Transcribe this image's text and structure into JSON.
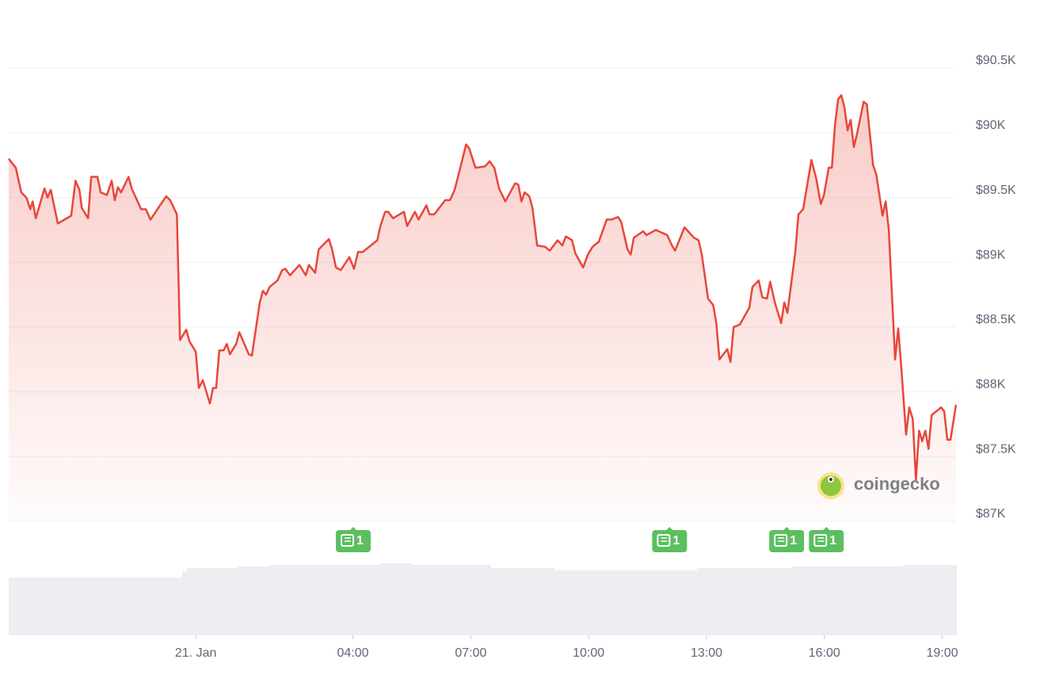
{
  "chart_data": {
    "type": "area",
    "watermark": "coingecko",
    "x": [
      -4.76,
      -4.58,
      -4.44,
      -4.31,
      -4.21,
      -4.15,
      -4.07,
      -3.85,
      -3.77,
      -3.69,
      -3.51,
      -3.17,
      -3.06,
      -2.96,
      -2.9,
      -2.74,
      -2.66,
      -2.5,
      -2.42,
      -2.26,
      -2.14,
      -2.06,
      -1.98,
      -1.9,
      -1.71,
      -1.63,
      -1.39,
      -1.27,
      -1.15,
      -0.91,
      -0.75,
      -0.65,
      -0.48,
      -0.4,
      -0.24,
      -0.16,
      0,
      0.08,
      0.18,
      0.36,
      0.44,
      0.52,
      0.6,
      0.71,
      0.79,
      0.87,
      1.03,
      1.11,
      1.35,
      1.43,
      1.63,
      1.71,
      1.79,
      1.88,
      2.08,
      2.2,
      2.28,
      2.4,
      2.64,
      2.8,
      2.88,
      3.04,
      3.13,
      3.39,
      3.47,
      3.57,
      3.69,
      3.91,
      4.03,
      4.13,
      4.25,
      4.62,
      4.7,
      4.82,
      4.9,
      5.02,
      5.3,
      5.38,
      5.58,
      5.67,
      5.87,
      5.95,
      6.07,
      6.35,
      6.47,
      6.59,
      6.75,
      6.88,
      6.96,
      7.12,
      7.36,
      7.48,
      7.6,
      7.72,
      7.88,
      8.13,
      8.21,
      8.29,
      8.37,
      8.49,
      8.57,
      8.69,
      8.89,
      9.01,
      9.21,
      9.33,
      9.42,
      9.58,
      9.66,
      9.86,
      9.98,
      10.1,
      10.26,
      10.46,
      10.58,
      10.75,
      10.83,
      10.99,
      11.07,
      11.15,
      11.39,
      11.47,
      11.71,
      12,
      12.12,
      12.2,
      12.44,
      12.68,
      12.8,
      12.88,
      13.04,
      13.17,
      13.25,
      13.33,
      13.53,
      13.61,
      13.69,
      13.85,
      14.09,
      14.17,
      14.33,
      14.42,
      14.54,
      14.62,
      14.74,
      14.9,
      14.98,
      15.06,
      15.26,
      15.34,
      15.46,
      15.67,
      15.79,
      15.91,
      15.99,
      16.11,
      16.19,
      16.27,
      16.35,
      16.43,
      16.51,
      16.59,
      16.67,
      16.75,
      16.83,
      17,
      17.08,
      17.24,
      17.32,
      17.48,
      17.56,
      17.64,
      17.8,
      17.88,
      17.96,
      18.08,
      18.16,
      18.25,
      18.33,
      18.41,
      18.49,
      18.57,
      18.65,
      18.73,
      18.97,
      19.05,
      19.13,
      19.21,
      19.35
    ],
    "series": [
      {
        "color": "#e8463a",
        "values": [
          89800,
          89730,
          89540,
          89500,
          89410,
          89470,
          89340,
          89570,
          89500,
          89560,
          89300,
          89360,
          89630,
          89560,
          89420,
          89340,
          89660,
          89660,
          89540,
          89520,
          89630,
          89480,
          89580,
          89540,
          89660,
          89570,
          89410,
          89410,
          89330,
          89440,
          89510,
          89480,
          89370,
          88400,
          88480,
          88390,
          88310,
          88030,
          88090,
          87910,
          88030,
          88030,
          88320,
          88320,
          88370,
          88290,
          88370,
          88460,
          88290,
          88280,
          88690,
          88780,
          88750,
          88810,
          88860,
          88940,
          88950,
          88900,
          88980,
          88900,
          88980,
          88920,
          89100,
          89180,
          89100,
          88960,
          88940,
          89040,
          88950,
          89080,
          89080,
          89170,
          89280,
          89390,
          89390,
          89340,
          89390,
          89280,
          89390,
          89330,
          89440,
          89370,
          89370,
          89480,
          89480,
          89560,
          89750,
          89910,
          89880,
          89730,
          89740,
          89780,
          89730,
          89570,
          89470,
          89610,
          89600,
          89470,
          89540,
          89510,
          89420,
          89130,
          89120,
          89090,
          89170,
          89130,
          89200,
          89170,
          89070,
          88960,
          89060,
          89120,
          89160,
          89330,
          89330,
          89350,
          89310,
          89100,
          89060,
          89190,
          89240,
          89210,
          89250,
          89210,
          89130,
          89090,
          89270,
          89190,
          89170,
          89060,
          88720,
          88670,
          88530,
          88250,
          88330,
          88230,
          88500,
          88520,
          88650,
          88810,
          88860,
          88730,
          88720,
          88850,
          88690,
          88530,
          88690,
          88610,
          89080,
          89370,
          89410,
          89790,
          89650,
          89450,
          89520,
          89730,
          89730,
          90060,
          90260,
          90290,
          90200,
          90020,
          90100,
          89890,
          89990,
          90240,
          90220,
          89750,
          89680,
          89360,
          89470,
          89250,
          88250,
          88490,
          88180,
          87670,
          87880,
          87790,
          87320,
          87700,
          87620,
          87700,
          87560,
          87820,
          87880,
          87850,
          87630,
          87630,
          87900
        ]
      }
    ],
    "xlim": [
      -4.76,
      19.35
    ],
    "xticks": [
      {
        "value": 0,
        "label": "21. Jan"
      },
      {
        "value": 4,
        "label": "04:00"
      },
      {
        "value": 7,
        "label": "07:00"
      },
      {
        "value": 10,
        "label": "10:00"
      },
      {
        "value": 13,
        "label": "13:00"
      },
      {
        "value": 16,
        "label": "16:00"
      },
      {
        "value": 19,
        "label": "19:00"
      }
    ],
    "ylim": [
      87000,
      90500
    ],
    "yticks": [
      {
        "value": 87000,
        "label": "$87K"
      },
      {
        "value": 87500,
        "label": "$87.5K"
      },
      {
        "value": 88000,
        "label": "$88K"
      },
      {
        "value": 88500,
        "label": "$88.5K"
      },
      {
        "value": 89000,
        "label": "$89K"
      },
      {
        "value": 89500,
        "label": "$89.5K"
      },
      {
        "value": 90000,
        "label": "$90K"
      },
      {
        "value": 90500,
        "label": "$90.5K"
      }
    ],
    "grid": true,
    "annotations": [
      {
        "x": 4.01,
        "text": "1"
      },
      {
        "x": 12.06,
        "text": "1"
      },
      {
        "x": 15.04,
        "text": "1"
      },
      {
        "x": 16.05,
        "text": "1"
      }
    ]
  }
}
